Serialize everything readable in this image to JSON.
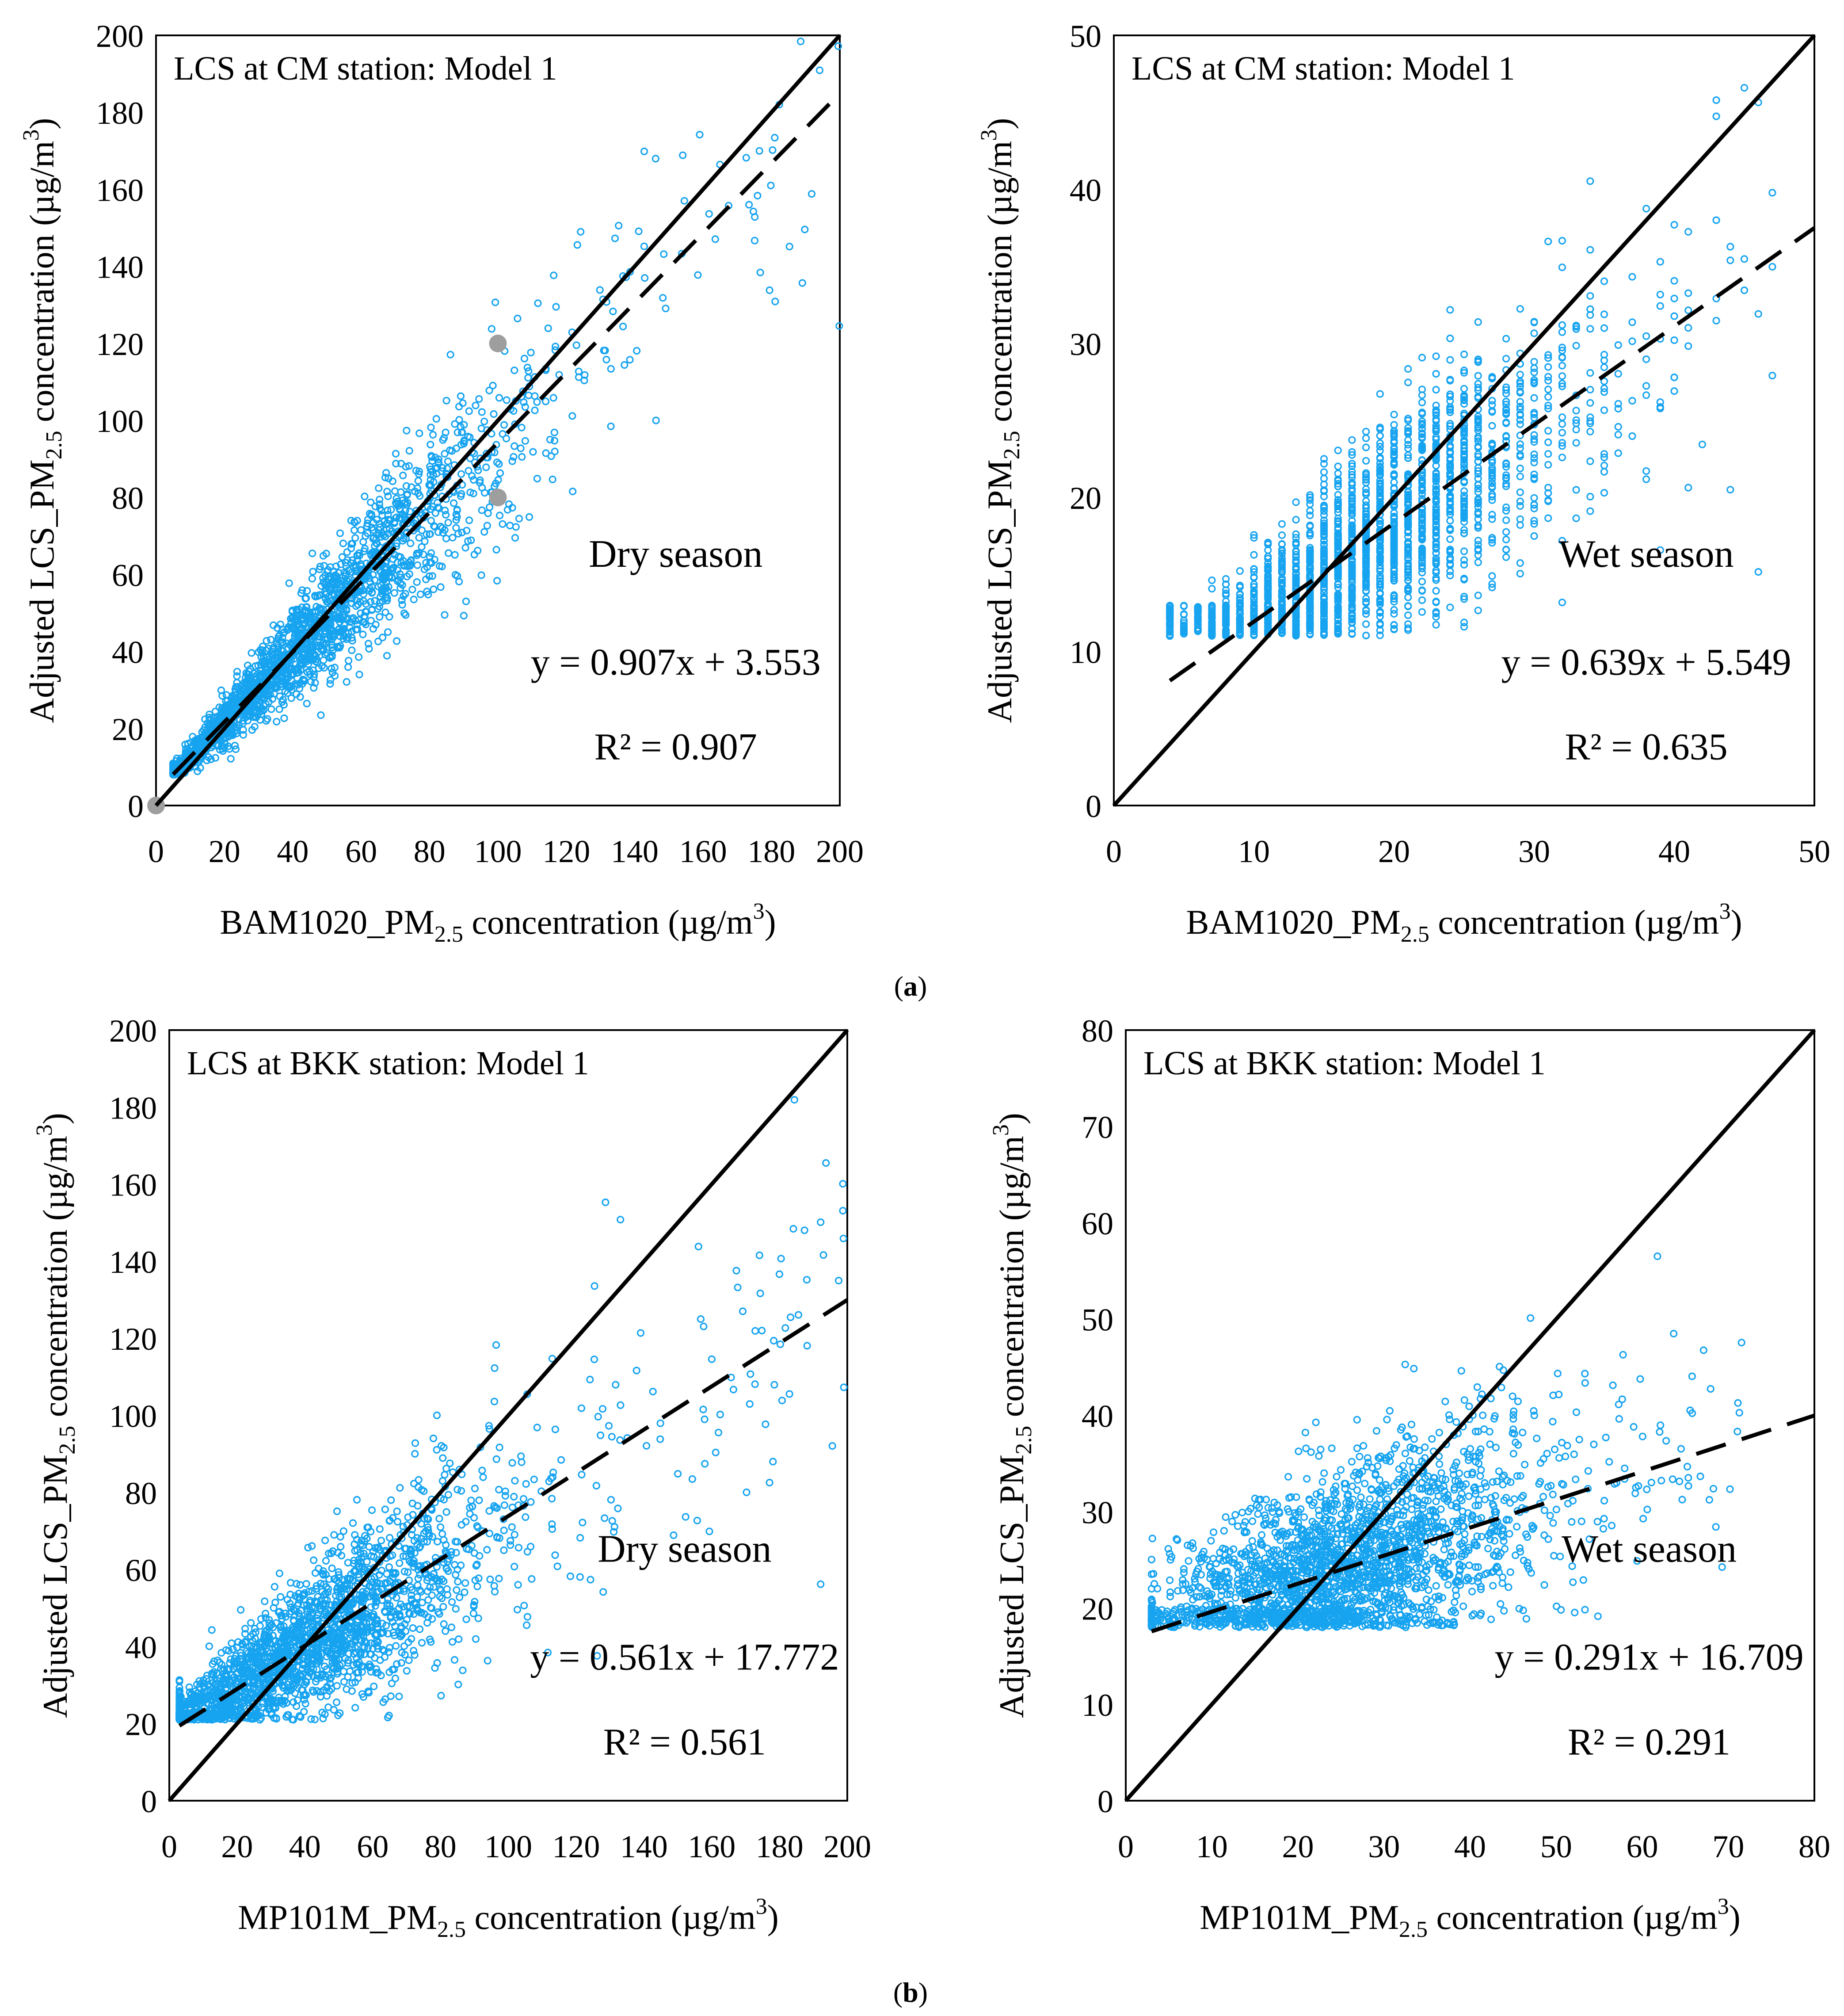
{
  "figure": {
    "label_a": "a",
    "label_b": "b"
  },
  "colors": {
    "points": "#16a3f0",
    "outlier_points": "#9e9e9e",
    "lines": "#000000",
    "axes": "#000000"
  },
  "chart_data": [
    {
      "id": "cm-dry",
      "type": "scatter",
      "title": "LCS at CM station: Model 1",
      "season": "Dry season",
      "equation": "y = 0.907x + 3.553",
      "r2": "R² = 0.907",
      "slope": 0.907,
      "intercept": 3.553,
      "xlabel_prefix": "BAM1020_PM",
      "xlabel_sub": "2.5",
      "xlabel_suffix": "  concentration (µg/m",
      "xlabel_sup": "3",
      "xlabel_end": ")",
      "ylabel_prefix": "Adjusted  LCS_PM",
      "ylabel_sub": "2.5",
      "ylabel_suffix": " concentration (µg/m",
      "ylabel_sup": "3",
      "ylabel_end": ")",
      "xlim": [
        0,
        200
      ],
      "ylim": [
        0,
        200
      ],
      "xticks": [
        "0",
        "20",
        "40",
        "60",
        "80",
        "100",
        "120",
        "140",
        "160",
        "180",
        "200"
      ],
      "yticks": [
        "0",
        "20",
        "40",
        "60",
        "80",
        "100",
        "120",
        "140",
        "160",
        "180",
        "200"
      ],
      "one_to_one_line": true,
      "cloud": {
        "x_range": [
          5,
          200
        ],
        "x_mode": 40,
        "y_floor": 8,
        "spread": 0.15,
        "count": 2200
      },
      "highlights": [
        [
          0,
          0
        ],
        [
          100,
          120
        ],
        [
          100,
          80
        ]
      ],
      "legend_pos": "bottom-right"
    },
    {
      "id": "cm-wet",
      "type": "scatter",
      "title": "LCS at CM station: Model 1",
      "season": "Wet season",
      "equation": "y = 0.639x + 5.549",
      "r2": "R² = 0.635",
      "slope": 0.639,
      "intercept": 5.549,
      "xlabel_prefix": "BAM1020_PM",
      "xlabel_sub": "2.5",
      "xlabel_suffix": "  concentration (µg/m",
      "xlabel_sup": "3",
      "xlabel_end": ")",
      "ylabel_prefix": "Adjusted  LCS_PM",
      "ylabel_sub": "2.5",
      "ylabel_suffix": " concentration (µg/m",
      "ylabel_sup": "3",
      "ylabel_end": ")",
      "xlim": [
        0,
        50
      ],
      "ylim": [
        0,
        50
      ],
      "xticks": [
        "0",
        "10",
        "20",
        "30",
        "40",
        "50"
      ],
      "yticks": [
        "0",
        "10",
        "20",
        "30",
        "40",
        "50"
      ],
      "one_to_one_line": true,
      "cloud": {
        "x_range": [
          4,
          47
        ],
        "x_mode": 18,
        "y_floor": 11,
        "spread": 0.18,
        "count": 2200,
        "discrete_x": true
      },
      "highlights": [],
      "legend_pos": "bottom-right"
    },
    {
      "id": "bkk-dry",
      "type": "scatter",
      "title": "LCS at BKK station: Model 1",
      "season": "Dry season",
      "equation": "y = 0.561x + 17.772",
      "r2": "R² = 0.561",
      "slope": 0.561,
      "intercept": 17.772,
      "xlabel_prefix": "MP101M_PM",
      "xlabel_sub": "2.5",
      "xlabel_suffix": "  concentration (µg/m",
      "xlabel_sup": "3",
      "xlabel_end": ")",
      "ylabel_prefix": "Adjusted  LCS_PM",
      "ylabel_sub": "2.5",
      "ylabel_suffix": " concentration (µg/m",
      "ylabel_sup": "3",
      "ylabel_end": ")",
      "xlim": [
        0,
        200
      ],
      "ylim": [
        0,
        200
      ],
      "xticks": [
        "0",
        "20",
        "40",
        "60",
        "80",
        "100",
        "120",
        "140",
        "160",
        "180",
        "200"
      ],
      "yticks": [
        "0",
        "20",
        "40",
        "60",
        "80",
        "100",
        "120",
        "140",
        "160",
        "180",
        "200"
      ],
      "one_to_one_line": true,
      "cloud": {
        "x_range": [
          3,
          200
        ],
        "x_mode": 35,
        "y_floor": 21,
        "spread": 0.22,
        "count": 2400
      },
      "highlights": [],
      "legend_pos": "bottom-right"
    },
    {
      "id": "bkk-wet",
      "type": "scatter",
      "title": "LCS at BKK station: Model 1",
      "season": "Wet season",
      "equation": "y = 0.291x + 16.709",
      "r2": "R² = 0.291",
      "slope": 0.291,
      "intercept": 16.709,
      "xlabel_prefix": "MP101M_PM",
      "xlabel_sub": "2.5",
      "xlabel_suffix": "  concentration (µg/m",
      "xlabel_sup": "3",
      "xlabel_end": ")",
      "ylabel_prefix": "Adjusted  LCS_PM",
      "ylabel_sub": "2.5",
      "ylabel_suffix": " concentration (µg/m",
      "ylabel_sup": "3",
      "ylabel_end": ")",
      "xlim": [
        0,
        80
      ],
      "ylim": [
        0,
        80
      ],
      "xticks": [
        "0",
        "10",
        "20",
        "30",
        "40",
        "50",
        "60",
        "70",
        "80"
      ],
      "yticks": [
        "0",
        "10",
        "20",
        "30",
        "40",
        "50",
        "60",
        "70",
        "80"
      ],
      "one_to_one_line": true,
      "cloud": {
        "x_range": [
          3,
          72
        ],
        "x_mode": 25,
        "y_floor": 18,
        "spread": 0.22,
        "count": 2400
      },
      "highlights": [],
      "legend_pos": "bottom-right"
    }
  ]
}
